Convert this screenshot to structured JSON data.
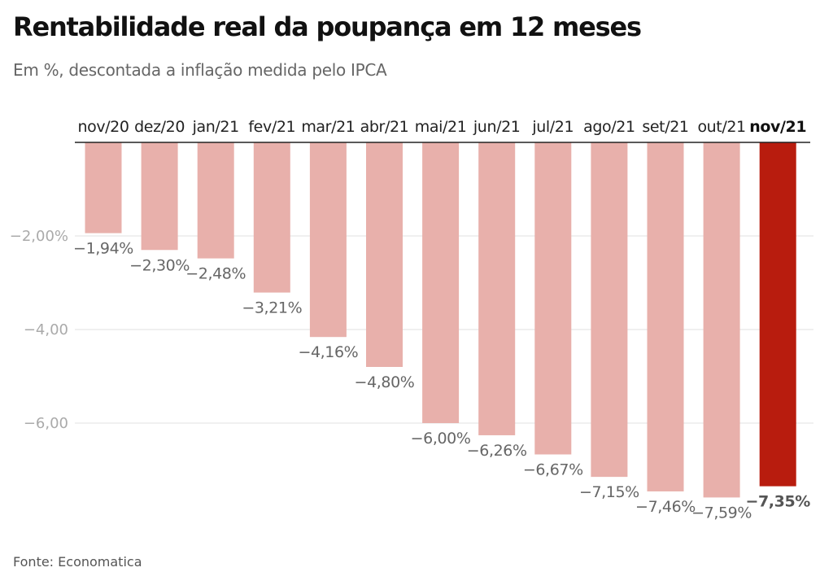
{
  "header": {
    "title": "Rentabilidade real da poupança em 12 meses",
    "subtitle": "Em %, descontada a inflação medida pelo IPCA"
  },
  "footer": {
    "source": "Fonte: Economatica"
  },
  "colors": {
    "bar": "#e8b0ab",
    "highlight": "#b81c0e",
    "grid": "#e2e2e2",
    "axis": "#222222"
  },
  "chart_data": {
    "type": "bar",
    "title": "Rentabilidade real da poupança em 12 meses",
    "subtitle": "Em %, descontada a inflação medida pelo IPCA",
    "xlabel": "",
    "ylabel": "",
    "categories": [
      "nov/20",
      "dez/20",
      "jan/21",
      "fev/21",
      "mar/21",
      "abr/21",
      "mai/21",
      "jun/21",
      "jul/21",
      "ago/21",
      "set/21",
      "out/21",
      "nov/21"
    ],
    "values": [
      -1.94,
      -2.3,
      -2.48,
      -3.21,
      -4.16,
      -4.8,
      -6.0,
      -6.26,
      -6.67,
      -7.15,
      -7.46,
      -7.59,
      -7.35
    ],
    "value_labels": [
      "−1,94%",
      "−2,30%",
      "−2,48%",
      "−3,21%",
      "−4,16%",
      "−4,80%",
      "−6,00%",
      "−6,26%",
      "−6,67%",
      "−7,15%",
      "−7,46%",
      "−7,59%",
      "−7,35%"
    ],
    "highlight_index": 12,
    "ylim": [
      -8,
      0
    ],
    "yticks": [
      -2,
      -4,
      -6
    ],
    "ytick_labels": [
      "−2,00%",
      "−4,00",
      "−6,00"
    ],
    "category_axis": "top",
    "grid": true,
    "legend": "none"
  }
}
